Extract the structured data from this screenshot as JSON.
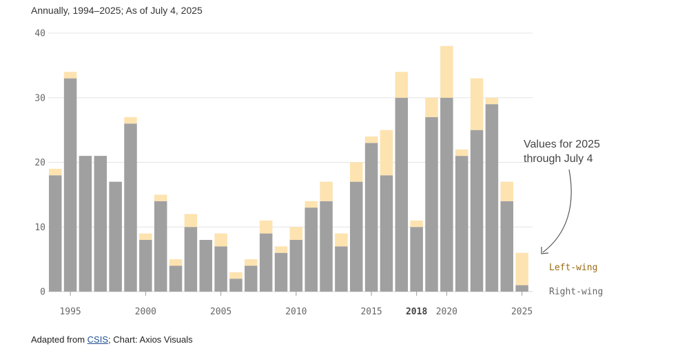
{
  "header": {
    "subtitle": "Annually, 1994–2025; As of July 4, 2025"
  },
  "footer": {
    "prefix": "Adapted from ",
    "link": "CSIS",
    "suffix": "; Chart: Axios Visuals"
  },
  "annotation": {
    "line1": "Values for 2025",
    "line2": "through July 4"
  },
  "colors": {
    "right": "#a0a0a0",
    "left": "#fde3b0",
    "grid": "#e4e4e4"
  },
  "chart_data": {
    "type": "bar",
    "stacked": true,
    "x": [
      1994,
      1995,
      1996,
      1997,
      1998,
      1999,
      2000,
      2001,
      2002,
      2003,
      2004,
      2005,
      2006,
      2007,
      2008,
      2009,
      2010,
      2011,
      2012,
      2013,
      2014,
      2015,
      2016,
      2017,
      2018,
      2019,
      2020,
      2021,
      2022,
      2023,
      2024,
      2025
    ],
    "series": [
      {
        "name": "Right-wing",
        "values": [
          18,
          33,
          21,
          21,
          17,
          26,
          8,
          14,
          4,
          10,
          8,
          7,
          2,
          4,
          9,
          6,
          8,
          13,
          14,
          7,
          17,
          23,
          18,
          30,
          10,
          27,
          30,
          21,
          25,
          29,
          14,
          1
        ]
      },
      {
        "name": "Left-wing",
        "values": [
          1,
          1,
          0,
          0,
          0,
          1,
          1,
          1,
          1,
          2,
          0,
          2,
          1,
          1,
          2,
          1,
          2,
          1,
          3,
          2,
          3,
          1,
          7,
          4,
          1,
          3,
          8,
          1,
          8,
          1,
          3,
          5
        ]
      }
    ],
    "ylim": [
      0,
      40
    ],
    "yticks": [
      "0",
      "10",
      "20",
      "30",
      "40"
    ],
    "xtick_labels": [
      "1995",
      "2000",
      "2005",
      "2010",
      "2015",
      "2018",
      "2020",
      "2025"
    ],
    "highlight_tick": "2018",
    "grid": "horizontal",
    "legend": "right, beside last bar"
  }
}
